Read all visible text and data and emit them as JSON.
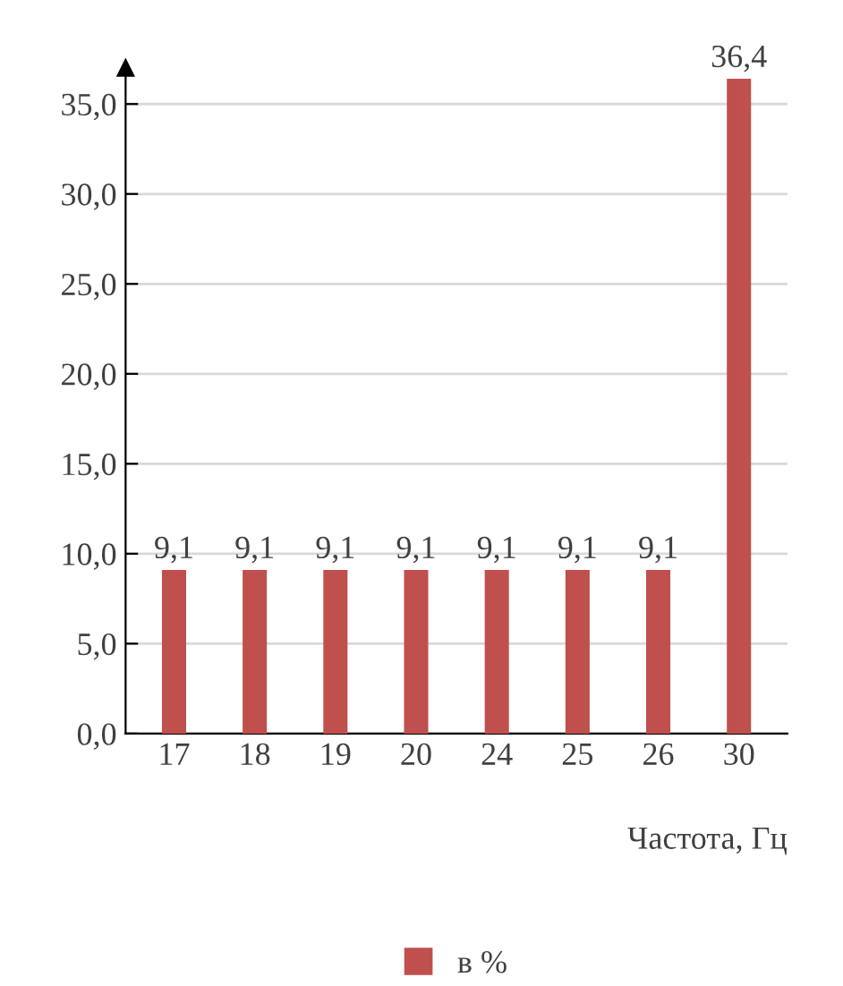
{
  "chart_data": {
    "type": "bar",
    "xlabel": "Частота, Гц",
    "categories": [
      "17",
      "18",
      "19",
      "20",
      "24",
      "25",
      "26",
      "30"
    ],
    "series": [
      {
        "name": "в %",
        "color": "#c0504d",
        "values": [
          9.1,
          9.1,
          9.1,
          9.1,
          9.1,
          9.1,
          9.1,
          36.4
        ],
        "value_labels": [
          "9,1",
          "9,1",
          "9,1",
          "9,1",
          "9,1",
          "9,1",
          "9,1",
          "36,4"
        ]
      }
    ],
    "ylim": [
      0,
      37
    ],
    "yticks": [
      {
        "value": 0,
        "label": "0,0"
      },
      {
        "value": 5,
        "label": "5,0"
      },
      {
        "value": 10,
        "label": "10,0"
      },
      {
        "value": 15,
        "label": "15,0"
      },
      {
        "value": 20,
        "label": "20,0"
      },
      {
        "value": 25,
        "label": "25,0"
      },
      {
        "value": 30,
        "label": "30,0"
      },
      {
        "value": 35,
        "label": "35,0"
      }
    ],
    "grid": "y",
    "legend": "bottom"
  }
}
